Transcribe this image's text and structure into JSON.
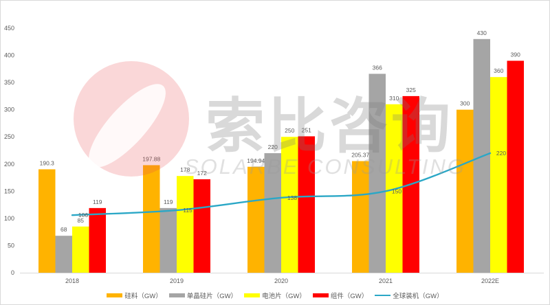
{
  "chart_data": {
    "type": "bar",
    "title": "",
    "xlabel": "",
    "ylabel": "",
    "categories": [
      "2018",
      "2019",
      "2020",
      "2021",
      "2022E"
    ],
    "series": [
      {
        "name": "硅料（GW）",
        "type": "bar",
        "color": "#FFB300",
        "values": [
          190.3,
          197.88,
          194.94,
          205.37,
          300
        ]
      },
      {
        "name": "单晶硅片（GW）",
        "type": "bar",
        "color": "#A5A5A5",
        "values": [
          68,
          119,
          220,
          366,
          430
        ]
      },
      {
        "name": "电池片（GW）",
        "type": "bar",
        "color": "#FFFF00",
        "values": [
          85,
          178,
          250,
          310,
          360
        ]
      },
      {
        "name": "组件（GW）",
        "type": "bar",
        "color": "#FF0000",
        "values": [
          119,
          172,
          251,
          325,
          390
        ]
      },
      {
        "name": "全球装机（GW）",
        "type": "line",
        "color": "#2AA7C6",
        "values": [
          106,
          115,
          138,
          150,
          220
        ]
      }
    ],
    "ylim": [
      0,
      450
    ],
    "yticks": [
      0,
      50,
      100,
      150,
      200,
      250,
      300,
      350,
      400,
      450
    ],
    "grid": false,
    "data_labels": true,
    "legend_position": "bottom"
  },
  "watermark": {
    "cn": "索比咨询",
    "en": "SOLARBE CONSULTING"
  },
  "colors": {
    "axis": "#D9D9D9",
    "label": "#595959",
    "logo": "#E8474C"
  }
}
